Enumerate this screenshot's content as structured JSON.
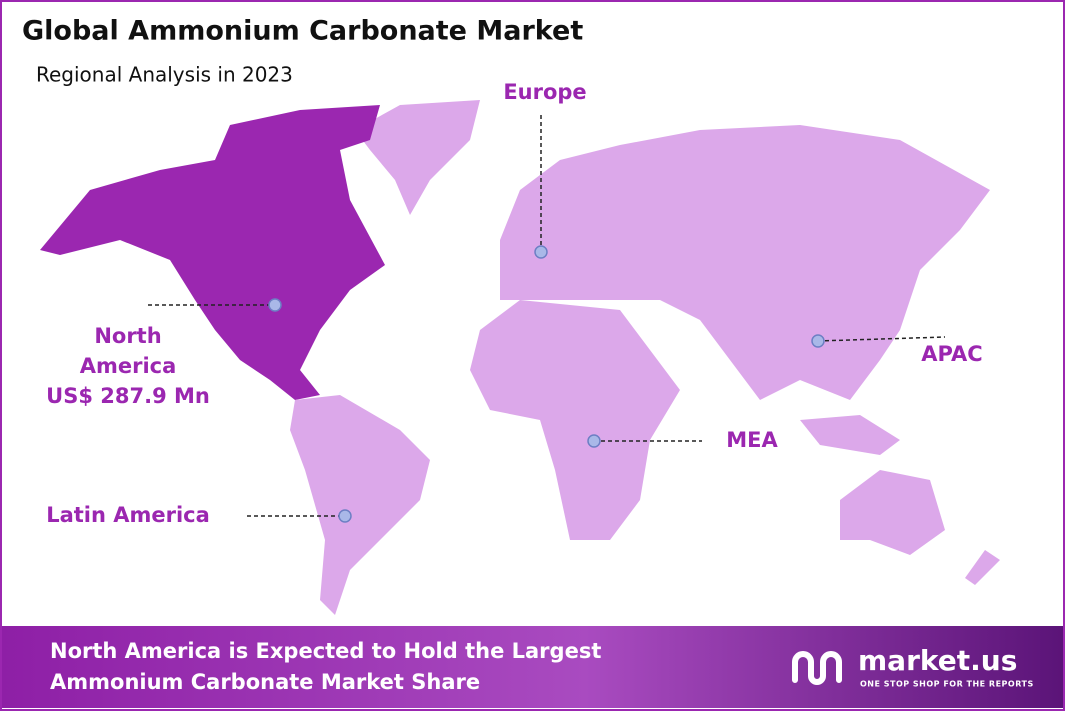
{
  "header": {
    "title": "Global Ammonium Carbonate Market",
    "subtitle": "Regional Analysis in 2023"
  },
  "regions": [
    {
      "label": "Europe"
    },
    {
      "label": "North America",
      "value": "US$ 287.9 Mn"
    },
    {
      "label": "Latin America"
    },
    {
      "label": "MEA"
    },
    {
      "label": "APAC"
    }
  ],
  "footer": {
    "lines": [
      "North America is Expected to Hold the Largest",
      "Ammonium Carbonate Market Share"
    ]
  },
  "logo": {
    "name": "market.us",
    "tagline": "ONE STOP SHOP FOR THE REPORTS"
  }
}
